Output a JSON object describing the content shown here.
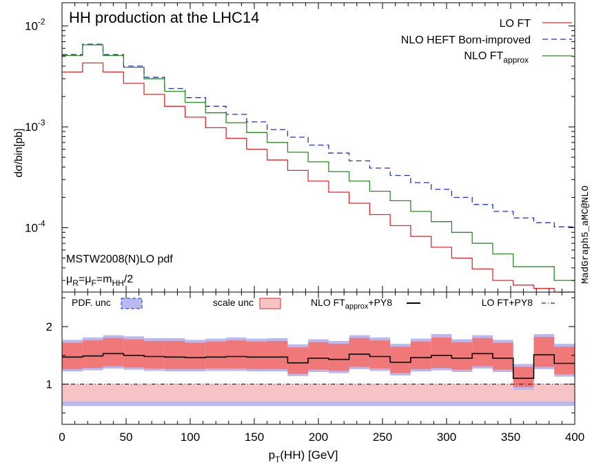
{
  "chart_data": [
    {
      "type": "line",
      "title": "HH production at the LHC14",
      "ylabel": "dσ/bin[pb]",
      "yscale": "log",
      "ylim": [
        2.3e-05,
        0.017
      ],
      "xlim": [
        0,
        400
      ],
      "x_edges": [
        0,
        16,
        32,
        48,
        64,
        80,
        96,
        112,
        128,
        144,
        160,
        176,
        192,
        208,
        224,
        240,
        256,
        272,
        288,
        304,
        320,
        336,
        352,
        368,
        384,
        400
      ],
      "yticks": [
        {
          "value": 0.01,
          "base": "10",
          "exp": "-2"
        },
        {
          "value": 0.001,
          "base": "10",
          "exp": "-3"
        },
        {
          "value": 0.0001,
          "base": "10",
          "exp": "-4"
        }
      ],
      "series": [
        {
          "name": "LO FT",
          "color": "#e8262a",
          "dash": "",
          "values": [
            0.0035,
            0.0043,
            0.0035,
            0.0027,
            0.0021,
            0.0016,
            0.00125,
            0.00098,
            0.00077,
            0.0006,
            0.00047,
            0.00037,
            0.00029,
            0.000225,
            0.000175,
            0.000135,
            0.000105,
            8.2e-05,
            6.4e-05,
            5e-05,
            3.9e-05,
            3e-05,
            2.7e-05,
            2.5e-05,
            2.3e-05
          ]
        },
        {
          "name": "NLO HEFT Born-improved",
          "color": "#1e2fd4",
          "dash": "8,5",
          "values": [
            0.0052,
            0.0066,
            0.0052,
            0.004,
            0.0031,
            0.0024,
            0.00195,
            0.0016,
            0.00133,
            0.00112,
            0.00094,
            0.00079,
            0.00066,
            0.00055,
            0.00046,
            0.00039,
            0.00033,
            0.00028,
            0.00024,
            0.0002,
            0.00017,
            0.000145,
            0.000125,
            0.000112,
            0.000102
          ]
        },
        {
          "name": "NLO FT",
          "name_sub": "approx",
          "color": "#2a8a24",
          "dash": "",
          "values": [
            0.0051,
            0.0065,
            0.0051,
            0.0039,
            0.003,
            0.00225,
            0.00175,
            0.00138,
            0.0011,
            0.00088,
            0.0007,
            0.00056,
            0.00045,
            0.00036,
            0.00029,
            0.00023,
            0.000185,
            0.000145,
            0.000115,
            9e-05,
            7e-05,
            5.5e-05,
            4.1e-05,
            4.1e-05,
            3e-05
          ]
        }
      ],
      "annotations": {
        "pdf": "MSTW2008(N)LO pdf",
        "scale_parts": [
          {
            "t": "μ"
          },
          {
            "t": "R",
            "sub": true
          },
          {
            "t": "=μ"
          },
          {
            "t": "F",
            "sub": true
          },
          {
            "t": "=m"
          },
          {
            "t": "HH",
            "sub": true
          },
          {
            "t": "/2"
          }
        ]
      },
      "side_label": "MadGraph5_aMC@NLO"
    },
    {
      "type": "area",
      "xlabel_parts": [
        {
          "t": "p"
        },
        {
          "t": "T",
          "sub": true
        },
        {
          "t": "(HH) [GeV]"
        }
      ],
      "ylim": [
        0.3,
        2.6
      ],
      "xlim": [
        0,
        400
      ],
      "xticks": [
        0,
        50,
        100,
        150,
        200,
        250,
        300,
        350,
        400
      ],
      "yticks": [
        1,
        2
      ],
      "legend": {
        "pdf_label": "PDF. unc",
        "scale_label": "scale unc",
        "nlo_label": "NLO FT",
        "nlo_sub": "approx",
        "nlo_suffix": "+PY8",
        "lo_label": "LO FT+PY8"
      },
      "colors": {
        "pdf_fill": "#b9b9f2",
        "pdf_line": "#1e2fd4",
        "scale_fill": "#f07878",
        "scale_light": "#f6c4c4",
        "scale_line": "#e8262a"
      },
      "x_edges": [
        0,
        16,
        32,
        48,
        64,
        80,
        96,
        112,
        128,
        144,
        160,
        176,
        192,
        208,
        224,
        240,
        256,
        272,
        288,
        304,
        320,
        336,
        352,
        368,
        384,
        400
      ],
      "nlo_ratio": [
        1.47,
        1.49,
        1.53,
        1.5,
        1.48,
        1.47,
        1.46,
        1.47,
        1.48,
        1.47,
        1.47,
        1.37,
        1.45,
        1.43,
        1.52,
        1.48,
        1.38,
        1.46,
        1.5,
        1.45,
        1.53,
        1.45,
        1.1,
        1.51,
        1.36
      ],
      "nlo_band": {
        "up": [
          1.72,
          1.76,
          1.8,
          1.78,
          1.75,
          1.75,
          1.72,
          1.74,
          1.76,
          1.74,
          1.75,
          1.64,
          1.73,
          1.7,
          1.8,
          1.76,
          1.65,
          1.74,
          1.81,
          1.73,
          1.8,
          1.72,
          1.3,
          1.82,
          1.65
        ],
        "dn": [
          1.26,
          1.28,
          1.31,
          1.29,
          1.27,
          1.26,
          1.26,
          1.27,
          1.27,
          1.26,
          1.26,
          1.18,
          1.25,
          1.23,
          1.3,
          1.27,
          1.19,
          1.26,
          1.28,
          1.25,
          1.31,
          1.25,
          0.95,
          1.3,
          1.17
        ]
      },
      "pdf_band": {
        "up": [
          1.77,
          1.81,
          1.85,
          1.83,
          1.8,
          1.8,
          1.77,
          1.79,
          1.81,
          1.79,
          1.8,
          1.69,
          1.78,
          1.75,
          1.85,
          1.81,
          1.7,
          1.79,
          1.87,
          1.78,
          1.85,
          1.77,
          1.35,
          1.87,
          1.7
        ],
        "dn": [
          1.22,
          1.24,
          1.27,
          1.25,
          1.23,
          1.22,
          1.22,
          1.23,
          1.23,
          1.22,
          1.22,
          1.14,
          1.21,
          1.19,
          1.26,
          1.23,
          1.15,
          1.22,
          1.24,
          1.21,
          1.27,
          1.21,
          0.9,
          1.26,
          1.13
        ]
      },
      "lo_band": {
        "up": 1.0,
        "dn": 0.7,
        "pdf_dn": 0.62
      },
      "lo_ratio": 1.0
    }
  ]
}
